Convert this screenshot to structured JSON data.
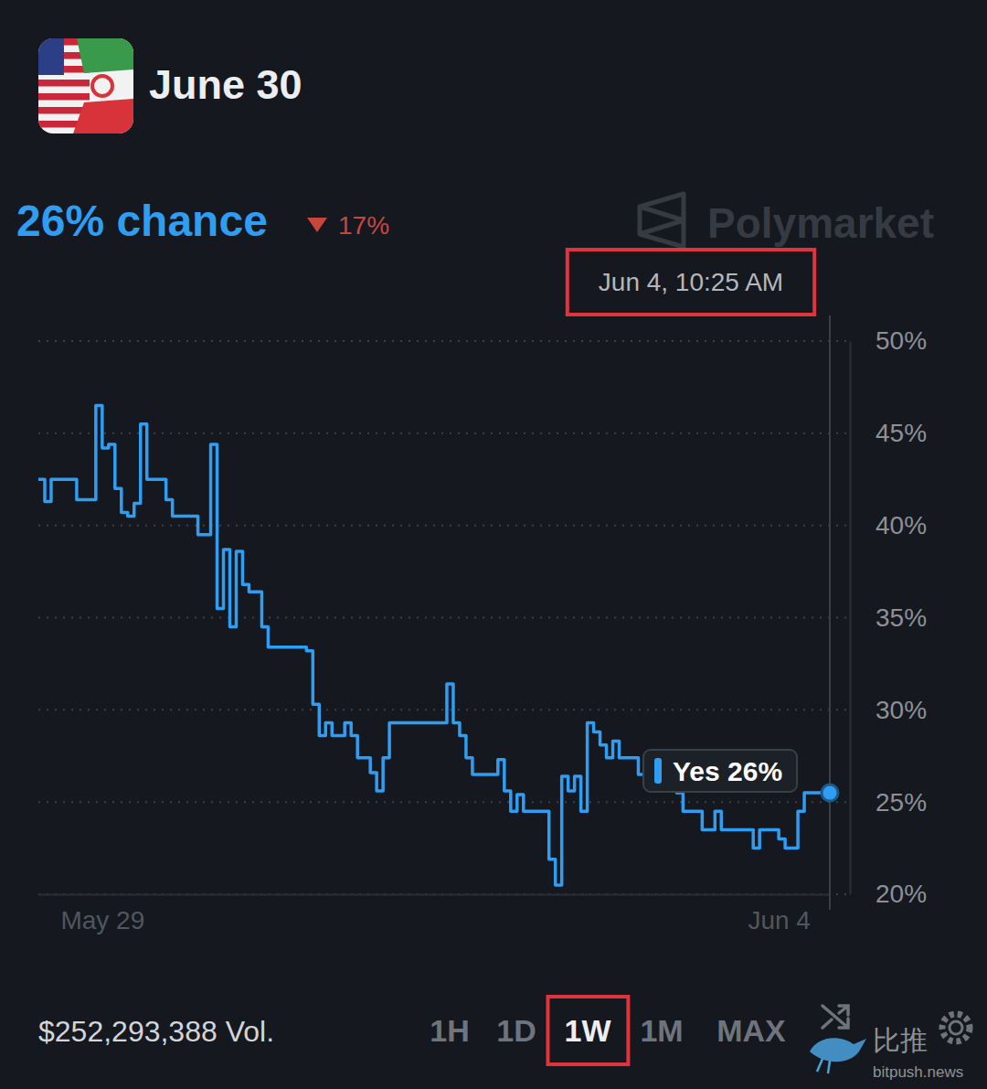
{
  "chart_data": {
    "type": "line",
    "title": "June 30",
    "subtitle": "26% chance",
    "color": "#2e9df2",
    "grid": true,
    "ylim": [
      20,
      50
    ],
    "yticks": [
      {
        "value": 20,
        "label": "20%"
      },
      {
        "value": 25,
        "label": "25%"
      },
      {
        "value": 30,
        "label": "30%"
      },
      {
        "value": 35,
        "label": "35%"
      },
      {
        "value": 40,
        "label": "40%"
      },
      {
        "value": 45,
        "label": "45%"
      },
      {
        "value": 50,
        "label": "50%"
      }
    ],
    "categories": [
      null,
      null,
      null,
      null,
      null,
      null,
      null,
      null,
      null,
      null,
      "May 29",
      null,
      null,
      null,
      null,
      null,
      null,
      null,
      null,
      null,
      null,
      null,
      null,
      null,
      null,
      null,
      null,
      null,
      null,
      null,
      null,
      null,
      null,
      null,
      null,
      null,
      null,
      null,
      null,
      null,
      null,
      null,
      null,
      null,
      null,
      null,
      null,
      null,
      null,
      null,
      null,
      null,
      null,
      null,
      null,
      null,
      null,
      null,
      null,
      null,
      null,
      null,
      null,
      null,
      null,
      null,
      null,
      null,
      null,
      null,
      null,
      null,
      null,
      null,
      null,
      null,
      null,
      null,
      null,
      null,
      null,
      null,
      null,
      null,
      null,
      null,
      null,
      null,
      null,
      null,
      null,
      null,
      null,
      null,
      null,
      null,
      null,
      null,
      null,
      null,
      null,
      null,
      null,
      null,
      null,
      null,
      null,
      null,
      null,
      null,
      null,
      null,
      null,
      null,
      null,
      null,
      "Jun 4",
      null,
      null,
      null,
      null,
      null,
      null,
      null,
      null
    ],
    "values": [
      42.5,
      41.3,
      42.5,
      42.5,
      42.5,
      42.5,
      41.4,
      41.4,
      41.4,
      46.5,
      44.2,
      44.4,
      42.0,
      40.7,
      40.5,
      41.2,
      45.5,
      42.5,
      42.5,
      42.5,
      41.4,
      40.5,
      40.5,
      40.5,
      40.5,
      39.5,
      39.5,
      44.4,
      35.5,
      38.7,
      34.5,
      38.6,
      36.8,
      36.4,
      36.4,
      34.5,
      33.4,
      33.4,
      33.4,
      33.4,
      33.4,
      33.4,
      33.2,
      30.3,
      28.6,
      29.3,
      28.6,
      28.6,
      29.3,
      28.6,
      27.4,
      27.4,
      26.6,
      25.6,
      27.4,
      29.3,
      29.3,
      29.3,
      29.3,
      29.3,
      29.3,
      29.3,
      29.3,
      29.3,
      31.4,
      29.3,
      28.6,
      27.4,
      26.5,
      26.5,
      26.5,
      26.5,
      27.3,
      25.6,
      24.5,
      25.4,
      24.5,
      24.5,
      24.5,
      24.5,
      21.9,
      20.5,
      26.4,
      25.6,
      26.4,
      24.5,
      29.3,
      28.8,
      28.1,
      27.4,
      28.3,
      27.4,
      27.4,
      27.4,
      26.5,
      26.5,
      26.5,
      26.5,
      26.5,
      26.5,
      25.5,
      24.5,
      24.5,
      24.5,
      23.5,
      23.5,
      24.5,
      23.5,
      23.5,
      23.5,
      23.5,
      23.5,
      22.5,
      23.5,
      23.5,
      23.5,
      23.0,
      22.5,
      22.5,
      24.5,
      25.5,
      25.5,
      25.5,
      25.5,
      25.5
    ],
    "annotations": {
      "change": "17%",
      "brand": "Polymarket",
      "timestamp": "Jun 4, 10:25 AM",
      "hover_label": "Yes 26%",
      "volume": "$252,293,388 Vol.",
      "ranges": [
        "1H",
        "1D",
        "1W",
        "1M",
        "MAX"
      ],
      "selected_range": "1W",
      "watermark": "比推",
      "watermark_url": "bitpush.news"
    }
  }
}
